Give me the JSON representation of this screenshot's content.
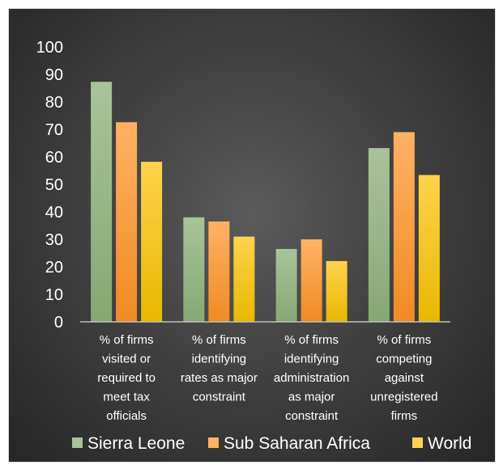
{
  "chart_data": {
    "type": "bar",
    "categories": [
      [
        "% of firms",
        "visited or",
        "required to",
        "meet tax",
        "officials"
      ],
      [
        "% of firms",
        "identifying",
        "rates as major",
        "constraint"
      ],
      [
        "% of firms",
        "identifying",
        "administration",
        "as major",
        "constraint"
      ],
      [
        "% of firms",
        "competing",
        "against",
        "unregistered",
        "firms"
      ]
    ],
    "series": [
      {
        "name": "Sierra Leone",
        "values": [
          87.3,
          38.0,
          26.5,
          63.2
        ]
      },
      {
        "name": "Sub Saharan Africa",
        "values": [
          72.6,
          36.5,
          30.0,
          69.0
        ]
      },
      {
        "name": "World",
        "values": [
          58.2,
          31.0,
          22.1,
          53.4
        ]
      }
    ],
    "yticks": [
      0,
      10,
      20,
      30,
      40,
      50,
      60,
      70,
      80,
      90,
      100
    ],
    "ylim": [
      0,
      100
    ],
    "grid": false,
    "legend_position": "bottom",
    "title": "",
    "xlabel": "",
    "ylabel": ""
  },
  "colors": {
    "series_top": [
      "#a9c39a",
      "#ffb264",
      "#ffd24d"
    ],
    "series_bottom": [
      "#86a873",
      "#f08a24",
      "#e8b800"
    ]
  }
}
